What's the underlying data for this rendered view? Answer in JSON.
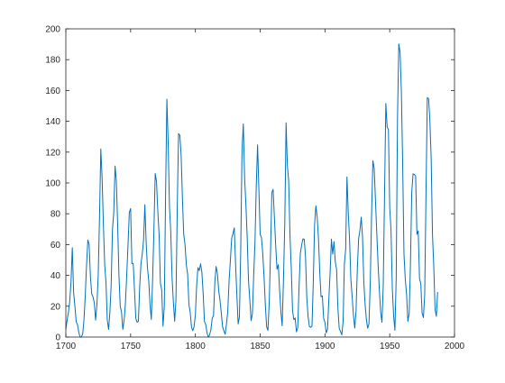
{
  "chart_data": {
    "type": "line",
    "title": "",
    "xlabel": "",
    "ylabel": "",
    "xlim": [
      1700,
      2000
    ],
    "ylim": [
      0,
      200
    ],
    "xticks": [
      1700,
      1750,
      1800,
      1850,
      1900,
      1950,
      2000
    ],
    "yticks": [
      0,
      20,
      40,
      60,
      80,
      100,
      120,
      140,
      160,
      180,
      200
    ],
    "grid": false,
    "box": true,
    "line_color": "#0072BD",
    "axis_color": "#262626",
    "series": [
      {
        "x": [
          1700,
          1701,
          1702,
          1703,
          1704,
          1705,
          1706,
          1707,
          1708,
          1709,
          1710,
          1711,
          1712,
          1713,
          1714,
          1715,
          1716,
          1717,
          1718,
          1719,
          1720,
          1721,
          1722,
          1723,
          1724,
          1725,
          1726,
          1727,
          1728,
          1729,
          1730,
          1731,
          1732,
          1733,
          1734,
          1735,
          1736,
          1737,
          1738,
          1739,
          1740,
          1741,
          1742,
          1743,
          1744,
          1745,
          1746,
          1747,
          1748,
          1749,
          1750,
          1751,
          1752,
          1753,
          1754,
          1755,
          1756,
          1757,
          1758,
          1759,
          1760,
          1761,
          1762,
          1763,
          1764,
          1765,
          1766,
          1767,
          1768,
          1769,
          1770,
          1771,
          1772,
          1773,
          1774,
          1775,
          1776,
          1777,
          1778,
          1779,
          1780,
          1781,
          1782,
          1783,
          1784,
          1785,
          1786,
          1787,
          1788,
          1789,
          1790,
          1791,
          1792,
          1793,
          1794,
          1795,
          1796,
          1797,
          1798,
          1799,
          1800,
          1801,
          1802,
          1803,
          1804,
          1805,
          1806,
          1807,
          1808,
          1809,
          1810,
          1811,
          1812,
          1813,
          1814,
          1815,
          1816,
          1817,
          1818,
          1819,
          1820,
          1821,
          1822,
          1823,
          1824,
          1825,
          1826,
          1827,
          1828,
          1829,
          1830,
          1831,
          1832,
          1833,
          1834,
          1835,
          1836,
          1837,
          1838,
          1839,
          1840,
          1841,
          1842,
          1843,
          1844,
          1845,
          1846,
          1847,
          1848,
          1849,
          1850,
          1851,
          1852,
          1853,
          1854,
          1855,
          1856,
          1857,
          1858,
          1859,
          1860,
          1861,
          1862,
          1863,
          1864,
          1865,
          1866,
          1867,
          1868,
          1869,
          1870,
          1871,
          1872,
          1873,
          1874,
          1875,
          1876,
          1877,
          1878,
          1879,
          1880,
          1881,
          1882,
          1883,
          1884,
          1885,
          1886,
          1887,
          1888,
          1889,
          1890,
          1891,
          1892,
          1893,
          1894,
          1895,
          1896,
          1897,
          1898,
          1899,
          1900,
          1901,
          1902,
          1903,
          1904,
          1905,
          1906,
          1907,
          1908,
          1909,
          1910,
          1911,
          1912,
          1913,
          1914,
          1915,
          1916,
          1917,
          1918,
          1919,
          1920,
          1921,
          1922,
          1923,
          1924,
          1925,
          1926,
          1927,
          1928,
          1929,
          1930,
          1931,
          1932,
          1933,
          1934,
          1935,
          1936,
          1937,
          1938,
          1939,
          1940,
          1941,
          1942,
          1943,
          1944,
          1945,
          1946,
          1947,
          1948,
          1949,
          1950,
          1951,
          1952,
          1953,
          1954,
          1955,
          1956,
          1957,
          1958,
          1959,
          1960,
          1961,
          1962,
          1963,
          1964,
          1965,
          1966,
          1967,
          1968,
          1969,
          1970,
          1971,
          1972,
          1973,
          1974,
          1975,
          1976,
          1977,
          1978,
          1979,
          1980,
          1981,
          1982,
          1983,
          1984,
          1985,
          1986,
          1987
        ],
        "y": [
          5,
          11,
          16,
          23,
          36,
          58,
          29,
          20,
          10,
          8,
          3,
          0,
          0,
          2,
          11,
          27,
          47,
          63,
          60,
          39,
          28,
          26,
          22,
          11,
          21,
          40,
          78,
          122,
          103,
          73,
          47,
          35,
          11,
          5,
          16,
          34,
          70,
          81,
          111,
          101,
          73,
          40,
          20,
          16,
          5,
          11,
          22,
          40,
          60,
          80.9,
          83.4,
          47.7,
          47.8,
          30.7,
          12.2,
          9.6,
          10.2,
          32.4,
          47.6,
          54,
          62.9,
          85.9,
          61.2,
          45.1,
          36.4,
          20.9,
          11.4,
          37.8,
          69.8,
          106.1,
          100.8,
          81.6,
          66.5,
          34.8,
          30.6,
          7,
          19.8,
          92.5,
          154.4,
          125.9,
          84.8,
          68.1,
          38.5,
          22.8,
          10.2,
          24.1,
          82.9,
          132,
          130.9,
          118.1,
          89.9,
          66.6,
          60,
          46.9,
          41,
          21.3,
          16,
          6.4,
          4.1,
          6.8,
          14.5,
          34,
          45,
          43.1,
          47.5,
          42.2,
          28.1,
          10.1,
          8.1,
          2.5,
          0,
          1.4,
          5,
          12.2,
          13.9,
          35.4,
          45.8,
          41.1,
          30.1,
          23.9,
          15.6,
          6.6,
          4,
          1.8,
          8.5,
          16.6,
          36.3,
          49.6,
          64.2,
          67,
          70.9,
          47.8,
          27.5,
          8.5,
          13.2,
          56.9,
          121.5,
          138.3,
          103.2,
          85.7,
          64.6,
          36.7,
          24.2,
          10.7,
          15,
          40.1,
          61.5,
          98.5,
          124.7,
          96.3,
          66.6,
          64.5,
          54.1,
          39,
          20.6,
          6.7,
          4.3,
          22.7,
          54.8,
          93.8,
          95.8,
          77.2,
          59.1,
          44,
          47,
          30.5,
          16.3,
          7.3,
          37.6,
          74,
          139,
          111.2,
          101.6,
          66.2,
          44.7,
          17,
          11.3,
          12.4,
          3.4,
          6,
          32.3,
          54.3,
          59.7,
          63.7,
          63.5,
          52.2,
          25.4,
          13.1,
          6.8,
          6.3,
          7.1,
          35.6,
          73,
          85.1,
          78,
          64,
          41.8,
          26.2,
          26.7,
          12.1,
          9.5,
          2.7,
          5,
          24.4,
          42,
          63.5,
          53.8,
          62,
          48.5,
          43.9,
          18.6,
          5.7,
          3.6,
          1.4,
          9.6,
          47.4,
          57.1,
          103.9,
          80.6,
          63.6,
          37.6,
          26.1,
          14.2,
          5.8,
          16.7,
          44.3,
          63.9,
          69,
          77.8,
          64.9,
          35.7,
          21.2,
          11.1,
          5.7,
          8.7,
          36.1,
          79.7,
          114.4,
          109.6,
          88.8,
          67.8,
          47.5,
          30.6,
          16.3,
          9.6,
          33.2,
          92.6,
          151.6,
          136.3,
          134.7,
          83.9,
          69.4,
          31.5,
          13.9,
          4.4,
          38,
          141.7,
          190.2,
          184.8,
          159,
          112.3,
          53.9,
          37.5,
          27.9,
          10.2,
          15.1,
          47,
          93.8,
          105.9,
          105.5,
          104.5,
          66.6,
          68.9,
          38,
          34.5,
          15.5,
          12.6,
          27.5,
          92.5,
          155.4,
          154.7,
          140.5,
          115.9,
          66.6,
          45.9,
          17.9,
          13.4,
          29.2
        ]
      }
    ]
  }
}
